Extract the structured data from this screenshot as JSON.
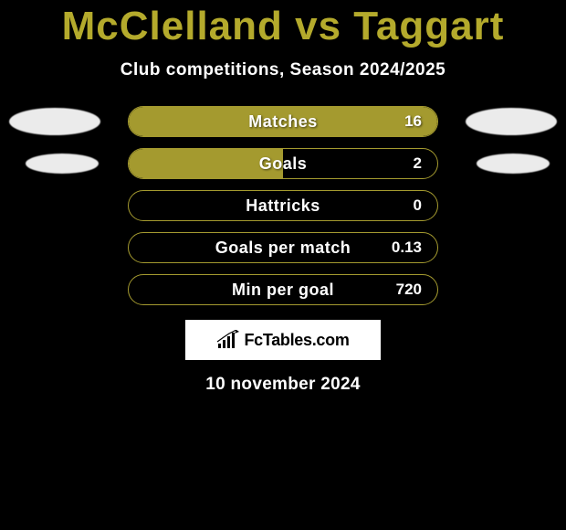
{
  "title_color": "#b4aa2c",
  "bar_fill_color": "#a49a2f",
  "bar_border_color": "#a49a2f",
  "title": "McClelland vs Taggart",
  "subtitle": "Club competitions, Season 2024/2025",
  "stats": [
    {
      "label": "Matches",
      "value": "16",
      "fill_pct": 100
    },
    {
      "label": "Goals",
      "value": "2",
      "fill_pct": 50
    },
    {
      "label": "Hattricks",
      "value": "0",
      "fill_pct": 0
    },
    {
      "label": "Goals per match",
      "value": "0.13",
      "fill_pct": 0
    },
    {
      "label": "Min per goal",
      "value": "720",
      "fill_pct": 0
    }
  ],
  "left_ellipses": [
    {
      "row": 0,
      "size": "big"
    },
    {
      "row": 1,
      "size": "small"
    }
  ],
  "right_ellipses": [
    {
      "row": 0,
      "size": "big"
    },
    {
      "row": 1,
      "size": "small"
    }
  ],
  "brand": "FcTables.com",
  "date": "10 november 2024"
}
